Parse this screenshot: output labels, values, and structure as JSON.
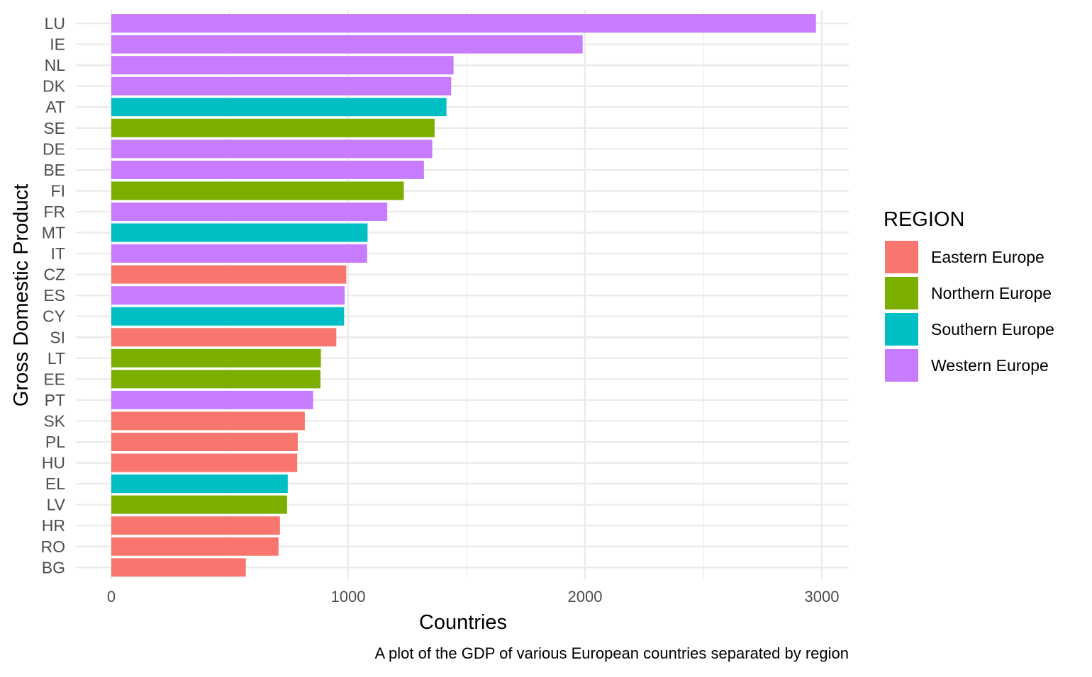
{
  "chart_data": {
    "type": "bar",
    "orientation": "horizontal",
    "xlabel": "Countries",
    "ylabel": "Gross Domestic Product",
    "caption": "A plot of the GDP of various European countries separated by region",
    "xlim": [
      0,
      3000
    ],
    "x_ticks": [
      0,
      1000,
      2000,
      3000
    ],
    "x_tick_labels": [
      "0",
      "1000",
      "2000",
      "3000"
    ],
    "grid": true,
    "legend": {
      "title": "REGION",
      "position": "right",
      "entries": [
        {
          "name": "Eastern Europe",
          "color": "#F8766D"
        },
        {
          "name": "Northern Europe",
          "color": "#7CAE00"
        },
        {
          "name": "Southern Europe",
          "color": "#00BFC4"
        },
        {
          "name": "Western Europe",
          "color": "#C77CFF"
        }
      ]
    },
    "categories": [
      "LU",
      "IE",
      "NL",
      "DK",
      "AT",
      "SE",
      "DE",
      "BE",
      "FI",
      "FR",
      "MT",
      "IT",
      "CZ",
      "ES",
      "CY",
      "SI",
      "LT",
      "EE",
      "PT",
      "SK",
      "PL",
      "HU",
      "EL",
      "LV",
      "HR",
      "RO",
      "BG"
    ],
    "values": [
      2975,
      1990,
      1445,
      1435,
      1415,
      1365,
      1355,
      1320,
      1235,
      1165,
      1082,
      1080,
      992,
      985,
      983,
      950,
      885,
      883,
      852,
      817,
      787,
      785,
      745,
      742,
      712,
      706,
      568
    ],
    "regions": [
      "Western Europe",
      "Western Europe",
      "Western Europe",
      "Western Europe",
      "Southern Europe",
      "Northern Europe",
      "Western Europe",
      "Western Europe",
      "Northern Europe",
      "Western Europe",
      "Southern Europe",
      "Western Europe",
      "Eastern Europe",
      "Western Europe",
      "Southern Europe",
      "Eastern Europe",
      "Northern Europe",
      "Northern Europe",
      "Western Europe",
      "Eastern Europe",
      "Eastern Europe",
      "Eastern Europe",
      "Southern Europe",
      "Northern Europe",
      "Eastern Europe",
      "Eastern Europe",
      "Eastern Europe"
    ]
  }
}
